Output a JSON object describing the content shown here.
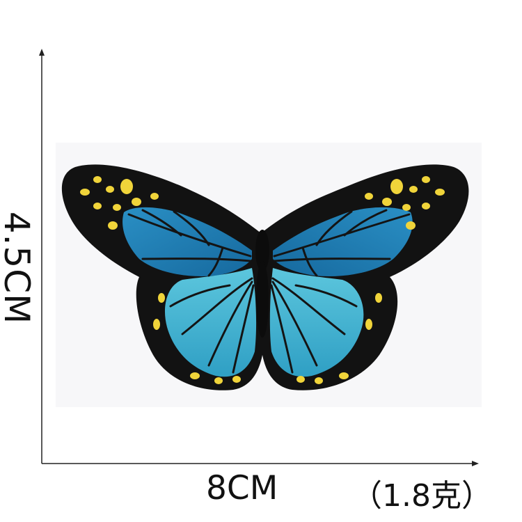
{
  "dimensions": {
    "height_label": "4.5CM",
    "width_label": "8CM",
    "weight_label": "（1.8克）"
  },
  "colors": {
    "patch_border": "#111111",
    "forewing_blue": "#1f82b8",
    "hindwing_cyan": "#3fb4d2",
    "spot_yellow": "#f0d43a",
    "axis_line": "#222222"
  },
  "image": {
    "subject_icon": "butterfly-icon"
  }
}
